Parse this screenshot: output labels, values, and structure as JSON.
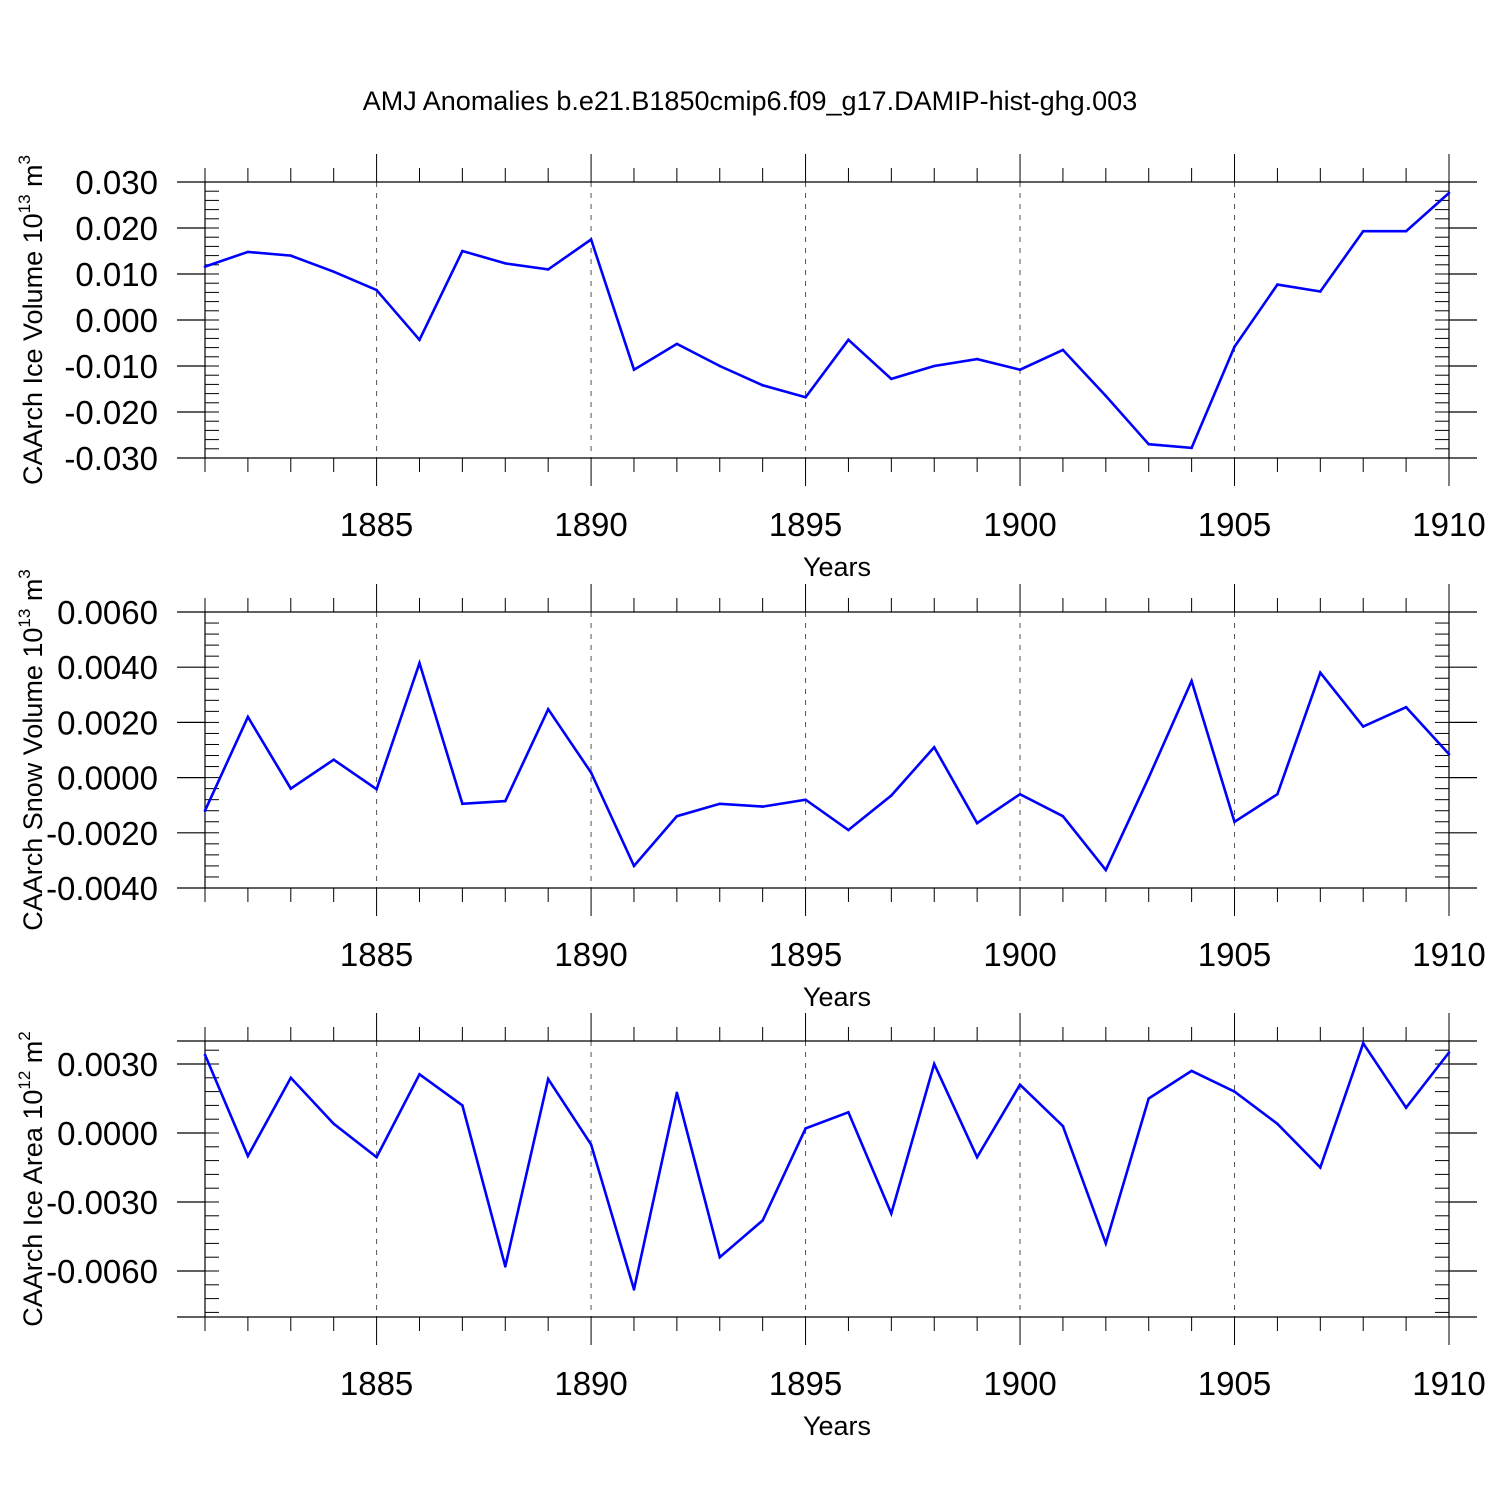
{
  "title": "AMJ Anomalies b.e21.B1850cmip6.f09_g17.DAMIP-hist-ghg.003",
  "colors": {
    "line": "#0000ff",
    "axis": "#000000",
    "grid": "#555555"
  },
  "chart_data": [
    {
      "type": "line",
      "ylabel_main": "CAArch Ice Volume 10",
      "ylabel_exp": "13",
      "ylabel_unit": " m",
      "ylabel_unit_exp": "3",
      "xlabel": "Years",
      "xlim": [
        1881,
        1910
      ],
      "ylim": [
        -0.03,
        0.03
      ],
      "x_ticks": [
        1885,
        1890,
        1895,
        1900,
        1905,
        1910
      ],
      "x_tick_labels": [
        "1885",
        "1890",
        "1895",
        "1900",
        "1905",
        "1910"
      ],
      "y_ticks": [
        0.03,
        0.02,
        0.01,
        0.0,
        -0.01,
        -0.02,
        -0.03
      ],
      "y_tick_labels": [
        "0.030",
        "0.020",
        "0.010",
        "0.000",
        "-0.010",
        "-0.020",
        "-0.030"
      ],
      "y_minor_step": 0.002,
      "x": [
        1881,
        1882,
        1883,
        1884,
        1885,
        1886,
        1887,
        1888,
        1889,
        1890,
        1891,
        1892,
        1893,
        1894,
        1895,
        1896,
        1897,
        1898,
        1899,
        1900,
        1901,
        1902,
        1903,
        1904,
        1905,
        1906,
        1907,
        1908,
        1909,
        1910
      ],
      "values": [
        0.0116,
        0.0148,
        0.014,
        0.0105,
        0.0065,
        -0.0043,
        0.015,
        0.0123,
        0.011,
        0.0175,
        -0.0108,
        -0.0052,
        -0.01,
        -0.0142,
        -0.0168,
        -0.0043,
        -0.0128,
        -0.01,
        -0.0085,
        -0.0108,
        -0.0065,
        -0.0165,
        -0.027,
        -0.0278,
        -0.0058,
        0.0077,
        0.0062,
        0.0193,
        0.0193,
        0.0276
      ]
    },
    {
      "type": "line",
      "ylabel_main": "CAArch Snow Volume 10",
      "ylabel_exp": "13",
      "ylabel_unit": " m",
      "ylabel_unit_exp": "3",
      "xlabel": "Years",
      "xlim": [
        1881,
        1910
      ],
      "ylim": [
        -0.004,
        0.006
      ],
      "x_ticks": [
        1885,
        1890,
        1895,
        1900,
        1905,
        1910
      ],
      "x_tick_labels": [
        "1885",
        "1890",
        "1895",
        "1900",
        "1905",
        "1910"
      ],
      "y_ticks": [
        0.006,
        0.004,
        0.002,
        0.0,
        -0.002,
        -0.004
      ],
      "y_tick_labels": [
        "0.0060",
        "0.0040",
        "0.0020",
        "0.0000",
        "-0.0020",
        "-0.0040"
      ],
      "y_minor_step": 0.0004,
      "x": [
        1881,
        1882,
        1883,
        1884,
        1885,
        1886,
        1887,
        1888,
        1889,
        1890,
        1891,
        1892,
        1893,
        1894,
        1895,
        1896,
        1897,
        1898,
        1899,
        1900,
        1901,
        1902,
        1903,
        1904,
        1905,
        1906,
        1907,
        1908,
        1909,
        1910
      ],
      "values": [
        -0.0012,
        0.0022,
        -0.0004,
        0.00065,
        -0.00042,
        0.00415,
        -0.00095,
        -0.00085,
        0.00248,
        0.00018,
        -0.0032,
        -0.0014,
        -0.00095,
        -0.00105,
        -0.0008,
        -0.0019,
        -0.00065,
        0.0011,
        -0.00165,
        -0.0006,
        -0.0014,
        -0.00335,
        0.0,
        0.0035,
        -0.0016,
        -0.0006,
        0.0038,
        0.00185,
        0.00255,
        0.00085
      ]
    },
    {
      "type": "line",
      "ylabel_main": "CAArch Ice Area 10",
      "ylabel_exp": "12",
      "ylabel_unit": " m",
      "ylabel_unit_exp": "2",
      "xlabel": "Years",
      "xlim": [
        1881,
        1910
      ],
      "ylim": [
        -0.008,
        0.004
      ],
      "x_ticks": [
        1885,
        1890,
        1895,
        1900,
        1905,
        1910
      ],
      "x_tick_labels": [
        "1885",
        "1890",
        "1895",
        "1900",
        "1905",
        "1910"
      ],
      "y_ticks": [
        0.003,
        0.0,
        -0.003,
        -0.006
      ],
      "y_tick_labels": [
        "0.0030",
        "0.0000",
        "-0.0030",
        "-0.0060"
      ],
      "y_minor_step": 0.0006,
      "x": [
        1881,
        1882,
        1883,
        1884,
        1885,
        1886,
        1887,
        1888,
        1889,
        1890,
        1891,
        1892,
        1893,
        1894,
        1895,
        1896,
        1897,
        1898,
        1899,
        1900,
        1901,
        1902,
        1903,
        1904,
        1905,
        1906,
        1907,
        1908,
        1909,
        1910
      ],
      "values": [
        0.0034,
        -0.001,
        0.0024,
        0.0004,
        -0.00105,
        0.00255,
        0.0012,
        -0.0058,
        0.00235,
        -0.0005,
        -0.0068,
        0.00175,
        -0.0054,
        -0.0038,
        0.0002,
        0.0009,
        -0.0035,
        0.003,
        -0.00105,
        0.0021,
        0.0003,
        -0.0048,
        0.0015,
        0.0027,
        0.0018,
        0.0004,
        -0.0015,
        0.0039,
        0.0011,
        0.0035
      ]
    }
  ]
}
